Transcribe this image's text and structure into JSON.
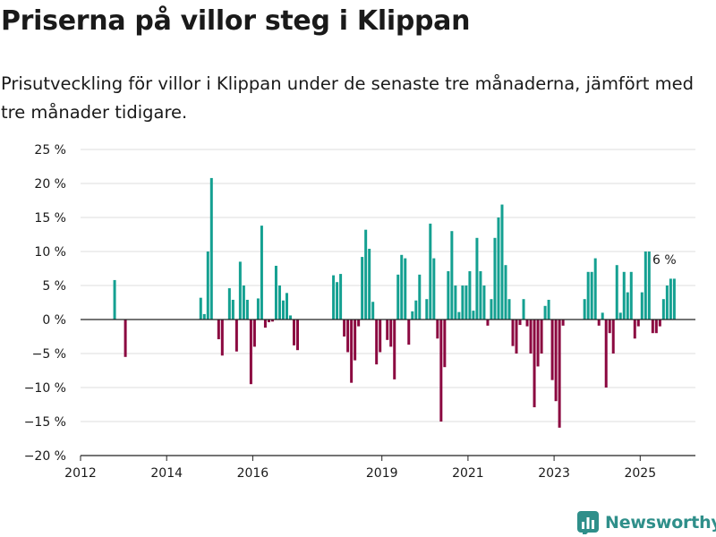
{
  "title": "Priserna på villor steg i Klippan",
  "subtitle": "Prisutveckling för villor i Klippan under de senaste tre månaderna, jämfört med tre månader tidigare.",
  "logo_text": "Newsworthy",
  "colors": {
    "positive": "#14a091",
    "negative": "#8b0840",
    "grid": "#dddddd",
    "baseline": "#222222",
    "logo": "#2f8f8a"
  },
  "chart_data": {
    "type": "bar",
    "title": "Priserna på villor steg i Klippan",
    "xlabel": "",
    "ylabel": "",
    "ylim": [
      -20,
      25
    ],
    "y_ticks": [
      25,
      20,
      15,
      10,
      5,
      0,
      -5,
      -10,
      -15,
      -20
    ],
    "y_tick_labels": [
      "25 %",
      "20 %",
      "15 %",
      "10 %",
      "5 %",
      "0 %",
      "−5 %",
      "−10 %",
      "−15 %",
      "−20 %"
    ],
    "x_ticks": [
      2012,
      2014,
      2016,
      2019,
      2021,
      2023,
      2025
    ],
    "x_tick_labels": [
      "2012",
      "2014",
      "2016",
      "2019",
      "2021",
      "2023",
      "2025"
    ],
    "grid": true,
    "annotation": {
      "text": "6 %",
      "at": "2025-07"
    },
    "bars": [
      {
        "date": "2012-10",
        "value": 5.8
      },
      {
        "date": "2013-01",
        "value": -5.5
      },
      {
        "date": "2014-10",
        "value": 3.2
      },
      {
        "date": "2014-11",
        "value": 0.8
      },
      {
        "date": "2014-12",
        "value": 10
      },
      {
        "date": "2015-01",
        "value": 20.8
      },
      {
        "date": "2015-03",
        "value": -2.9
      },
      {
        "date": "2015-04",
        "value": -5.3
      },
      {
        "date": "2015-06",
        "value": 4.6
      },
      {
        "date": "2015-07",
        "value": 2.9
      },
      {
        "date": "2015-08",
        "value": -4.7
      },
      {
        "date": "2015-09",
        "value": 8.5
      },
      {
        "date": "2015-10",
        "value": 5
      },
      {
        "date": "2015-11",
        "value": 2.9
      },
      {
        "date": "2015-12",
        "value": -9.5
      },
      {
        "date": "2016-01",
        "value": -4
      },
      {
        "date": "2016-02",
        "value": 3.1
      },
      {
        "date": "2016-03",
        "value": 13.8
      },
      {
        "date": "2016-04",
        "value": -1.2
      },
      {
        "date": "2016-05",
        "value": -0.4
      },
      {
        "date": "2016-06",
        "value": -0.3
      },
      {
        "date": "2016-07",
        "value": 7.9
      },
      {
        "date": "2016-08",
        "value": 5
      },
      {
        "date": "2016-09",
        "value": 2.8
      },
      {
        "date": "2016-10",
        "value": 3.9
      },
      {
        "date": "2016-11",
        "value": 0.6
      },
      {
        "date": "2016-12",
        "value": -3.8
      },
      {
        "date": "2017-01",
        "value": -4.5
      },
      {
        "date": "2017-11",
        "value": 6.5
      },
      {
        "date": "2017-12",
        "value": 5.5
      },
      {
        "date": "2018-01",
        "value": 6.7
      },
      {
        "date": "2018-02",
        "value": -2.5
      },
      {
        "date": "2018-03",
        "value": -4.8
      },
      {
        "date": "2018-04",
        "value": -9.3
      },
      {
        "date": "2018-05",
        "value": -6
      },
      {
        "date": "2018-06",
        "value": -1
      },
      {
        "date": "2018-07",
        "value": 9.2
      },
      {
        "date": "2018-08",
        "value": 13.2
      },
      {
        "date": "2018-09",
        "value": 10.4
      },
      {
        "date": "2018-10",
        "value": 2.6
      },
      {
        "date": "2018-11",
        "value": -6.6
      },
      {
        "date": "2018-12",
        "value": -4.8
      },
      {
        "date": "2019-02",
        "value": -3
      },
      {
        "date": "2019-03",
        "value": -4
      },
      {
        "date": "2019-04",
        "value": -8.8
      },
      {
        "date": "2019-05",
        "value": 6.6
      },
      {
        "date": "2019-06",
        "value": 9.5
      },
      {
        "date": "2019-07",
        "value": 9
      },
      {
        "date": "2019-08",
        "value": -3.7
      },
      {
        "date": "2019-09",
        "value": 1.2
      },
      {
        "date": "2019-10",
        "value": 2.8
      },
      {
        "date": "2019-11",
        "value": 6.6
      },
      {
        "date": "2020-01",
        "value": 3
      },
      {
        "date": "2020-02",
        "value": 14.1
      },
      {
        "date": "2020-03",
        "value": 9
      },
      {
        "date": "2020-04",
        "value": -2.8
      },
      {
        "date": "2020-05",
        "value": -15
      },
      {
        "date": "2020-06",
        "value": -7
      },
      {
        "date": "2020-07",
        "value": 7.1
      },
      {
        "date": "2020-08",
        "value": 13
      },
      {
        "date": "2020-09",
        "value": 5
      },
      {
        "date": "2020-10",
        "value": 1.1
      },
      {
        "date": "2020-11",
        "value": 5
      },
      {
        "date": "2020-12",
        "value": 5
      },
      {
        "date": "2021-01",
        "value": 7.1
      },
      {
        "date": "2021-02",
        "value": 1.3
      },
      {
        "date": "2021-03",
        "value": 12
      },
      {
        "date": "2021-04",
        "value": 7.1
      },
      {
        "date": "2021-05",
        "value": 5
      },
      {
        "date": "2021-06",
        "value": -0.9
      },
      {
        "date": "2021-07",
        "value": 3
      },
      {
        "date": "2021-08",
        "value": 12
      },
      {
        "date": "2021-09",
        "value": 15
      },
      {
        "date": "2021-10",
        "value": 16.9
      },
      {
        "date": "2021-11",
        "value": 8
      },
      {
        "date": "2021-12",
        "value": 3
      },
      {
        "date": "2022-01",
        "value": -3.9
      },
      {
        "date": "2022-02",
        "value": -5
      },
      {
        "date": "2022-03",
        "value": -0.8
      },
      {
        "date": "2022-04",
        "value": 3
      },
      {
        "date": "2022-05",
        "value": -1
      },
      {
        "date": "2022-06",
        "value": -5
      },
      {
        "date": "2022-07",
        "value": -12.9
      },
      {
        "date": "2022-08",
        "value": -6.9
      },
      {
        "date": "2022-09",
        "value": -5
      },
      {
        "date": "2022-10",
        "value": 2
      },
      {
        "date": "2022-11",
        "value": 2.9
      },
      {
        "date": "2022-12",
        "value": -8.9
      },
      {
        "date": "2023-01",
        "value": -12
      },
      {
        "date": "2023-02",
        "value": -15.9
      },
      {
        "date": "2023-03",
        "value": -0.9
      },
      {
        "date": "2023-09",
        "value": 3
      },
      {
        "date": "2023-10",
        "value": 7
      },
      {
        "date": "2023-11",
        "value": 7
      },
      {
        "date": "2023-12",
        "value": 9
      },
      {
        "date": "2024-01",
        "value": -0.9
      },
      {
        "date": "2024-02",
        "value": 1
      },
      {
        "date": "2024-03",
        "value": -10
      },
      {
        "date": "2024-04",
        "value": -2
      },
      {
        "date": "2024-05",
        "value": -5
      },
      {
        "date": "2024-06",
        "value": 8
      },
      {
        "date": "2024-07",
        "value": 1
      },
      {
        "date": "2024-08",
        "value": 7
      },
      {
        "date": "2024-09",
        "value": 4
      },
      {
        "date": "2024-10",
        "value": 7
      },
      {
        "date": "2024-11",
        "value": -2.8
      },
      {
        "date": "2024-12",
        "value": -1
      },
      {
        "date": "2025-01",
        "value": 4
      },
      {
        "date": "2025-02",
        "value": 10
      },
      {
        "date": "2025-03",
        "value": 10
      },
      {
        "date": "2025-04",
        "value": -2
      },
      {
        "date": "2025-05",
        "value": -2
      },
      {
        "date": "2025-06",
        "value": -1
      },
      {
        "date": "2025-07",
        "value": 3
      },
      {
        "date": "2025-08",
        "value": 5
      },
      {
        "date": "2025-09",
        "value": 6
      },
      {
        "date": "2025-10",
        "value": 6
      }
    ]
  }
}
